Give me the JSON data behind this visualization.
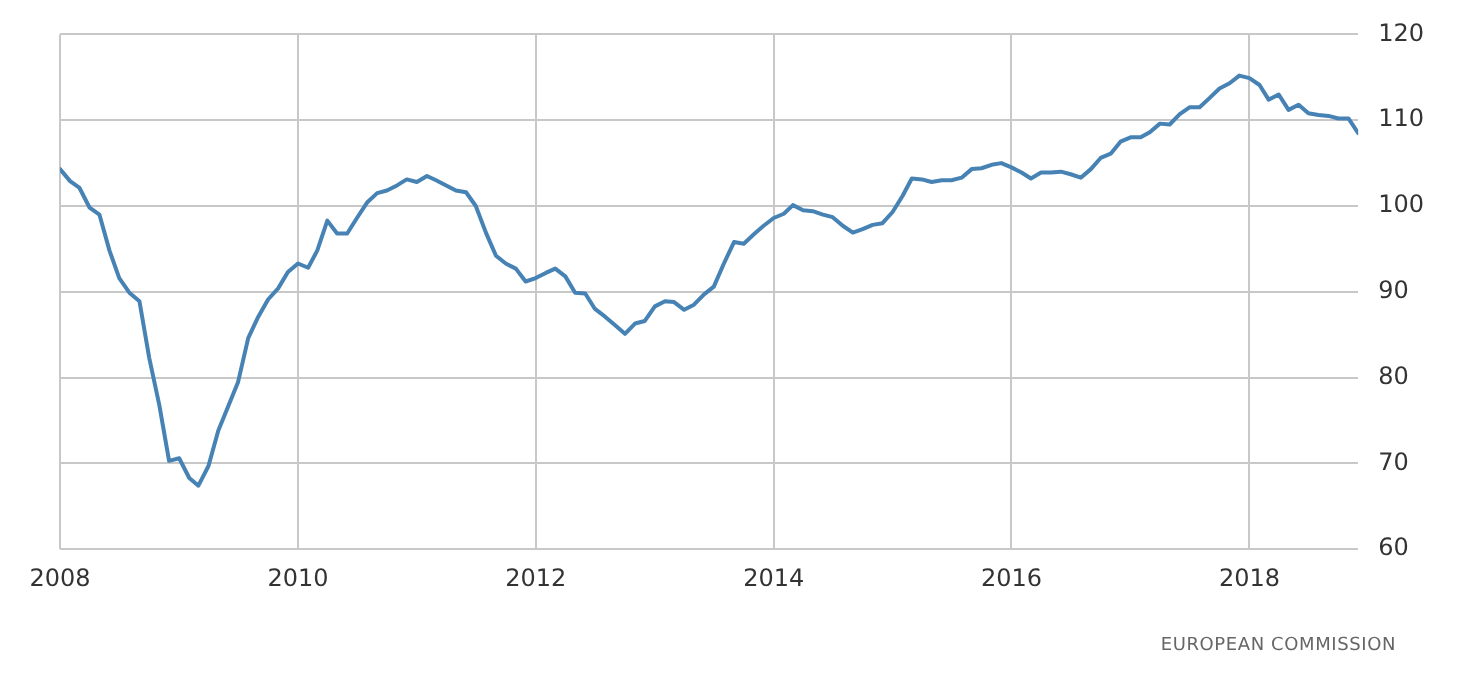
{
  "chart_data": {
    "type": "line",
    "annotations": [
      "EUROPEAN COMMISSION"
    ],
    "x": [
      "2008-01",
      "2008-02",
      "2008-03",
      "2008-04",
      "2008-05",
      "2008-06",
      "2008-07",
      "2008-08",
      "2008-09",
      "2008-10",
      "2008-11",
      "2008-12",
      "2009-01",
      "2009-02",
      "2009-03",
      "2009-04",
      "2009-05",
      "2009-06",
      "2009-07",
      "2009-08",
      "2009-09",
      "2009-10",
      "2009-11",
      "2009-12",
      "2010-01",
      "2010-02",
      "2010-03",
      "2010-04",
      "2010-05",
      "2010-06",
      "2010-07",
      "2010-08",
      "2010-09",
      "2010-10",
      "2010-11",
      "2010-12",
      "2011-01",
      "2011-02",
      "2011-03",
      "2011-04",
      "2011-05",
      "2011-06",
      "2011-07",
      "2011-08",
      "2011-09",
      "2011-10",
      "2011-11",
      "2011-12",
      "2012-01",
      "2012-02",
      "2012-03",
      "2012-04",
      "2012-05",
      "2012-06",
      "2012-07",
      "2012-08",
      "2012-09",
      "2012-10",
      "2012-11",
      "2012-12",
      "2013-01",
      "2013-02",
      "2013-03",
      "2013-04",
      "2013-05",
      "2013-06",
      "2013-07",
      "2013-08",
      "2013-09",
      "2013-10",
      "2013-11",
      "2013-12",
      "2014-01",
      "2014-02",
      "2014-03",
      "2014-04",
      "2014-05",
      "2014-06",
      "2014-07",
      "2014-08",
      "2014-09",
      "2014-10",
      "2014-11",
      "2014-12",
      "2015-01",
      "2015-02",
      "2015-03",
      "2015-04",
      "2015-05",
      "2015-06",
      "2015-07",
      "2015-08",
      "2015-09",
      "2015-10",
      "2015-11",
      "2015-12",
      "2016-01",
      "2016-02",
      "2016-03",
      "2016-04",
      "2016-05",
      "2016-06",
      "2016-07",
      "2016-08",
      "2016-09",
      "2016-10",
      "2016-11",
      "2016-12",
      "2017-01",
      "2017-02",
      "2017-03",
      "2017-04",
      "2017-05",
      "2017-06",
      "2017-07",
      "2017-08",
      "2017-09",
      "2017-10",
      "2017-11",
      "2017-12",
      "2018-01",
      "2018-02",
      "2018-03",
      "2018-04",
      "2018-05",
      "2018-06",
      "2018-07",
      "2018-08",
      "2018-09",
      "2018-10",
      "2018-11",
      "2018-12"
    ],
    "series": [
      {
        "color": "#4682b4",
        "values": [
          104.3,
          102.9,
          102.1,
          99.8,
          99.0,
          94.8,
          91.6,
          89.9,
          88.9,
          82.3,
          76.8,
          70.3,
          70.6,
          68.3,
          67.4,
          69.7,
          73.8,
          76.7,
          79.5,
          84.6,
          87.1,
          89.1,
          90.4,
          92.3,
          93.3,
          92.8,
          94.8,
          98.3,
          96.8,
          96.8,
          98.6,
          100.4,
          101.5,
          101.8,
          102.4,
          103.1,
          102.8,
          103.5,
          103.0,
          102.4,
          101.8,
          101.6,
          100.0,
          96.9,
          94.2,
          93.3,
          92.7,
          91.2,
          91.6,
          92.2,
          92.7,
          91.8,
          89.9,
          89.8,
          88.0,
          87.1,
          86.1,
          85.1,
          86.3,
          86.6,
          88.3,
          88.9,
          88.8,
          87.9,
          88.5,
          89.7,
          90.6,
          93.3,
          95.8,
          95.6,
          96.7,
          97.7,
          98.6,
          99.1,
          100.1,
          99.5,
          99.4,
          99.0,
          98.7,
          97.7,
          96.9,
          97.3,
          97.8,
          98.0,
          99.3,
          101.2,
          103.2,
          103.1,
          102.8,
          103.0,
          103.0,
          103.3,
          104.3,
          104.4,
          104.8,
          105.0,
          104.5,
          103.9,
          103.2,
          103.9,
          103.9,
          104.0,
          103.7,
          103.3,
          104.3,
          105.6,
          106.1,
          107.5,
          108.0,
          108.0,
          108.6,
          109.6,
          109.5,
          110.7,
          111.5,
          111.5,
          112.6,
          113.7,
          114.3,
          115.2,
          114.9,
          114.1,
          112.4,
          113.0,
          111.2,
          111.8,
          110.8,
          110.6,
          110.5,
          110.2,
          110.2,
          108.5
        ]
      }
    ],
    "xlim": [
      "2008-01",
      "2018-12"
    ],
    "xticks": [
      "2008",
      "2010",
      "2012",
      "2014",
      "2016",
      "2018"
    ],
    "ylim": [
      60,
      120
    ],
    "yticks": [
      60,
      70,
      80,
      90,
      100,
      110,
      120
    ],
    "grid": true,
    "legend": false,
    "marker": "none",
    "line_style": "solid"
  }
}
